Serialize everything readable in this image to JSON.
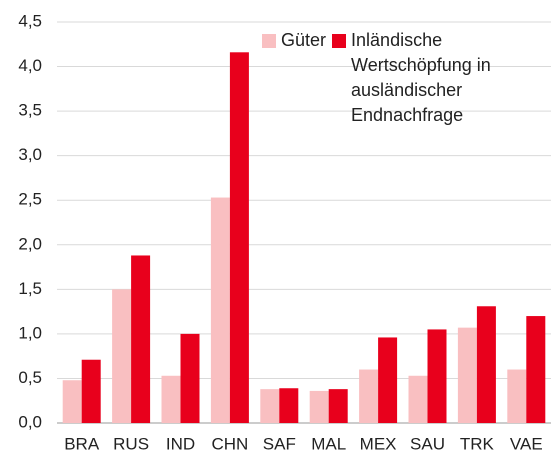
{
  "chart_data": {
    "type": "bar",
    "categories": [
      "BRA",
      "RUS",
      "IND",
      "CHN",
      "SAF",
      "MAL",
      "MEX",
      "SAU",
      "TRK",
      "VAE"
    ],
    "series": [
      {
        "name": "Güter",
        "color": "#f9bfc1",
        "values": [
          0.48,
          1.5,
          0.53,
          2.53,
          0.38,
          0.36,
          0.6,
          0.53,
          1.07,
          0.6
        ]
      },
      {
        "name": "Inländische Wertschöpfung in ausländischer Endnachfrage",
        "color": "#e8001c",
        "values": [
          0.71,
          1.88,
          1.0,
          4.16,
          0.39,
          0.38,
          0.96,
          1.05,
          1.31,
          1.2
        ]
      }
    ],
    "ylim": [
      0,
      4.5
    ],
    "yticks": [
      {
        "value": 0,
        "label": "0,0"
      },
      {
        "value": 0.5,
        "label": "0,5"
      },
      {
        "value": 1,
        "label": "1,0"
      },
      {
        "value": 1.5,
        "label": "1,5"
      },
      {
        "value": 2,
        "label": "2,0"
      },
      {
        "value": 2.5,
        "label": "2,5"
      },
      {
        "value": 3,
        "label": "3,0"
      },
      {
        "value": 3.5,
        "label": "3,5"
      },
      {
        "value": 4,
        "label": "4,0"
      },
      {
        "value": 4.5,
        "label": "4,5"
      }
    ],
    "grid": true
  }
}
